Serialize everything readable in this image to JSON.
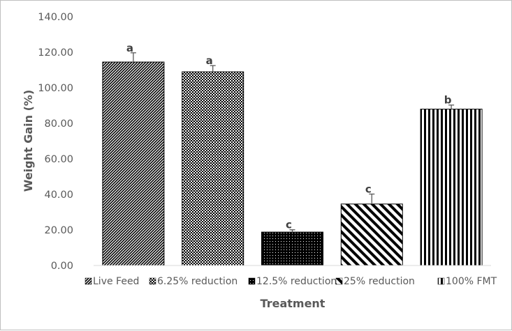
{
  "chart_data": {
    "type": "bar",
    "title": "",
    "xlabel": "Treatment",
    "ylabel": "Weight Gain (%)",
    "ylim": [
      0,
      140
    ],
    "ytick_step": 20,
    "ytick_labels": [
      "0.00",
      "20.00",
      "40.00",
      "60.00",
      "80.00",
      "100.00",
      "120.00",
      "140.00"
    ],
    "grid": false,
    "legend_position": "bottom",
    "categories": [
      "Live Feed",
      "6.25% reduction",
      "12.5% reduction",
      "25% reduction",
      "100% FMT"
    ],
    "values": [
      114.5,
      109.0,
      18.8,
      34.6,
      88.0
    ],
    "error": [
      5.2,
      3.5,
      1.3,
      5.6,
      2.3
    ],
    "significance": [
      "a",
      "a",
      "c",
      "c",
      "b"
    ],
    "patterns": [
      "diag-fine",
      "checker",
      "dots-dark",
      "diag-wide",
      "vertical"
    ],
    "bar_color": "#000000",
    "text_color": "#595959"
  }
}
